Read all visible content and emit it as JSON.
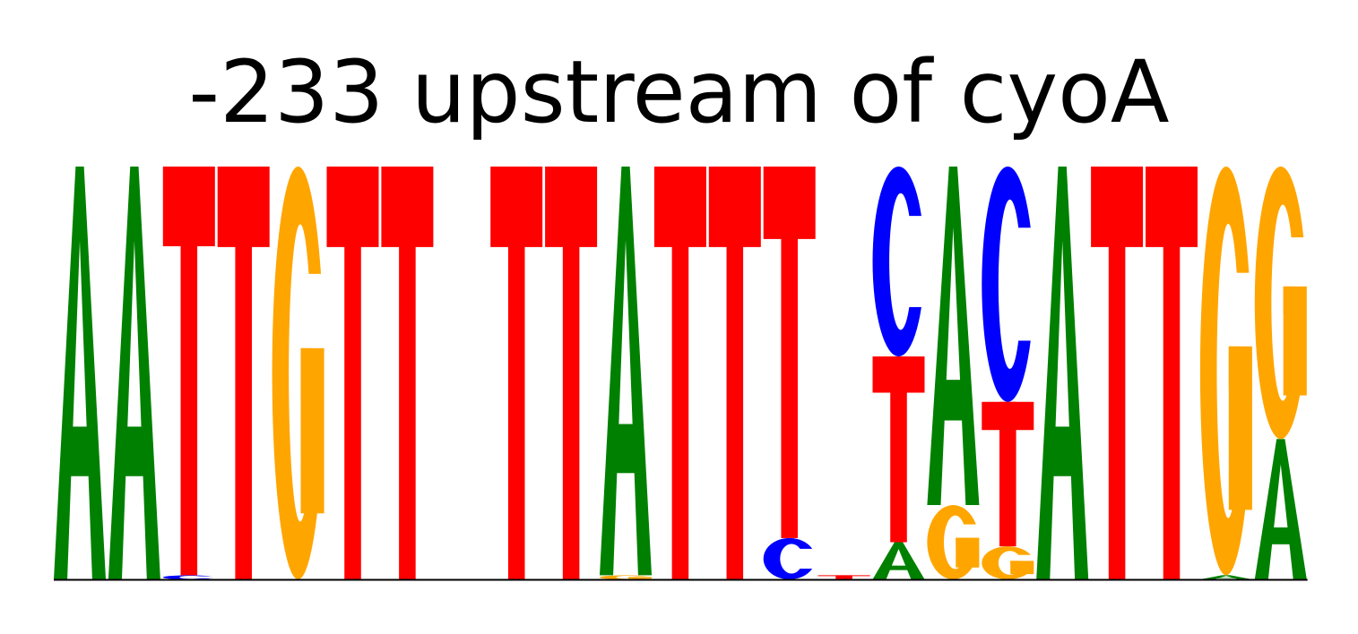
{
  "title": "-233 upstream of cyoA",
  "colors": {
    "A": "#008000",
    "C": "#0000ff",
    "G": "#ffa500",
    "T": "#ff0000"
  },
  "chart_data": {
    "type": "sequence-logo",
    "title": "-233 upstream of cyoA",
    "alphabet": [
      "A",
      "C",
      "G",
      "T"
    ],
    "ylim": [
      0,
      1
    ],
    "positions": [
      [
        {
          "letter": "A",
          "height": 1.0
        }
      ],
      [
        {
          "letter": "A",
          "height": 1.0
        }
      ],
      [
        {
          "letter": "C",
          "height": 0.01
        },
        {
          "letter": "T",
          "height": 0.99
        }
      ],
      [
        {
          "letter": "T",
          "height": 1.0
        }
      ],
      [
        {
          "letter": "G",
          "height": 1.0
        }
      ],
      [
        {
          "letter": "T",
          "height": 1.0
        }
      ],
      [
        {
          "letter": "T",
          "height": 1.0
        }
      ],
      [],
      [
        {
          "letter": "T",
          "height": 1.0
        }
      ],
      [
        {
          "letter": "T",
          "height": 1.0
        }
      ],
      [
        {
          "letter": "G",
          "height": 0.01
        },
        {
          "letter": "A",
          "height": 0.99
        }
      ],
      [
        {
          "letter": "T",
          "height": 1.0
        }
      ],
      [
        {
          "letter": "T",
          "height": 1.0
        }
      ],
      [
        {
          "letter": "C",
          "height": 0.1
        },
        {
          "letter": "T",
          "height": 0.9
        }
      ],
      [
        {
          "letter": "T",
          "height": 0.01
        }
      ],
      [
        {
          "letter": "A",
          "height": 0.09
        },
        {
          "letter": "T",
          "height": 0.45
        },
        {
          "letter": "C",
          "height": 0.46
        }
      ],
      [
        {
          "letter": "G",
          "height": 0.18
        },
        {
          "letter": "A",
          "height": 0.82
        }
      ],
      [
        {
          "letter": "G",
          "height": 0.08
        },
        {
          "letter": "T",
          "height": 0.35
        },
        {
          "letter": "C",
          "height": 0.57
        }
      ],
      [
        {
          "letter": "A",
          "height": 1.0
        }
      ],
      [
        {
          "letter": "T",
          "height": 1.0
        }
      ],
      [
        {
          "letter": "T",
          "height": 1.0
        }
      ],
      [
        {
          "letter": "A",
          "height": 0.01
        },
        {
          "letter": "G",
          "height": 0.99
        }
      ],
      [
        {
          "letter": "A",
          "height": 0.34
        },
        {
          "letter": "G",
          "height": 0.66
        }
      ]
    ]
  }
}
